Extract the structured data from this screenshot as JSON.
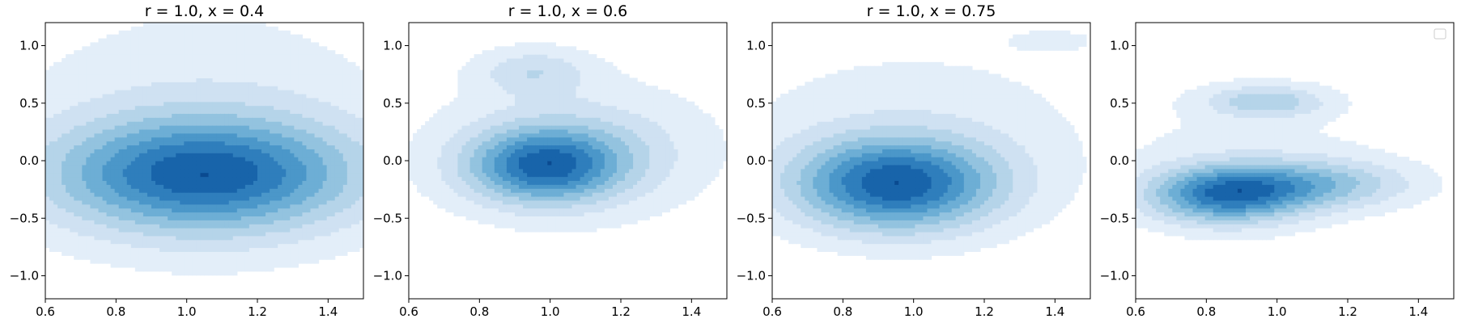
{
  "chart_data": [
    {
      "type": "contour",
      "title": "r = 1.0, x = 0.4",
      "xlabel": "",
      "ylabel": "",
      "xlim": [
        0.6,
        1.5
      ],
      "ylim": [
        -1.2,
        1.2
      ],
      "xticks": [
        "0.6",
        "0.8",
        "1.0",
        "1.2",
        "1.4"
      ],
      "yticks": [
        "1.0",
        "0.5",
        "0.0",
        "−0.5",
        "−1.0"
      ],
      "grid": false,
      "colormap": "Blues",
      "levels": 9,
      "density_blobs": [
        {
          "cx": 1.05,
          "cy": -0.12,
          "sx": 0.3,
          "sy": 0.34,
          "w": 1.0
        },
        {
          "cx": 1.05,
          "cy": 0.25,
          "sx": 0.45,
          "sy": 0.9,
          "w": 0.25
        }
      ]
    },
    {
      "type": "contour",
      "title": "r = 1.0, x = 0.6",
      "xlabel": "",
      "ylabel": "",
      "xlim": [
        0.6,
        1.5
      ],
      "ylim": [
        -1.2,
        1.2
      ],
      "xticks": [
        "0.6",
        "0.8",
        "1.0",
        "1.2",
        "1.4"
      ],
      "yticks": [
        "1.0",
        "0.5",
        "0.0",
        "−0.5",
        "−1.0"
      ],
      "grid": false,
      "colormap": "Blues",
      "levels": 9,
      "density_blobs": [
        {
          "cx": 0.98,
          "cy": -0.05,
          "sx": 0.15,
          "sy": 0.22,
          "w": 1.0
        },
        {
          "cx": 1.08,
          "cy": 0.1,
          "sx": 0.22,
          "sy": 0.32,
          "w": 0.35
        },
        {
          "cx": 0.95,
          "cy": 0.78,
          "sx": 0.11,
          "sy": 0.14,
          "w": 0.35
        },
        {
          "cx": 1.05,
          "cy": 0.1,
          "sx": 0.5,
          "sy": 0.8,
          "w": 0.15
        }
      ]
    },
    {
      "type": "contour",
      "title": "r = 1.0, x = 0.75",
      "xlabel": "",
      "ylabel": "",
      "xlim": [
        0.6,
        1.5
      ],
      "ylim": [
        -1.2,
        1.2
      ],
      "xticks": [
        "0.6",
        "0.8",
        "1.0",
        "1.2",
        "1.4"
      ],
      "yticks": [
        "1.0",
        "0.5",
        "0.0",
        "−0.5",
        "−1.0"
      ],
      "grid": false,
      "colormap": "Blues",
      "levels": 9,
      "density_blobs": [
        {
          "cx": 0.95,
          "cy": -0.2,
          "sx": 0.2,
          "sy": 0.28,
          "w": 1.0
        },
        {
          "cx": 1.0,
          "cy": 0.2,
          "sx": 0.45,
          "sy": 0.7,
          "w": 0.2
        },
        {
          "cx": 1.4,
          "cy": 1.05,
          "sx": 0.1,
          "sy": 0.08,
          "w": 0.12
        }
      ]
    },
    {
      "type": "contour",
      "title": "",
      "xlabel": "",
      "ylabel": "",
      "xlim": [
        0.6,
        1.5
      ],
      "ylim": [
        -1.2,
        1.2
      ],
      "xticks": [
        "0.6",
        "0.8",
        "1.0",
        "1.2",
        "1.4"
      ],
      "yticks": [
        "1.0",
        "0.5",
        "0.0",
        "−0.5",
        "−1.0"
      ],
      "grid": false,
      "legend": "top-right (empty)",
      "colormap": "Blues",
      "levels": 9,
      "density_blobs": [
        {
          "cx": 0.85,
          "cy": -0.3,
          "sx": 0.15,
          "sy": 0.17,
          "w": 1.0
        },
        {
          "cx": 1.1,
          "cy": -0.2,
          "sx": 0.2,
          "sy": 0.15,
          "w": 0.6
        },
        {
          "cx": 0.97,
          "cy": 0.52,
          "sx": 0.12,
          "sy": 0.1,
          "w": 0.5
        },
        {
          "cx": 0.9,
          "cy": 0.0,
          "sx": 0.35,
          "sy": 0.55,
          "w": 0.2
        }
      ]
    }
  ]
}
